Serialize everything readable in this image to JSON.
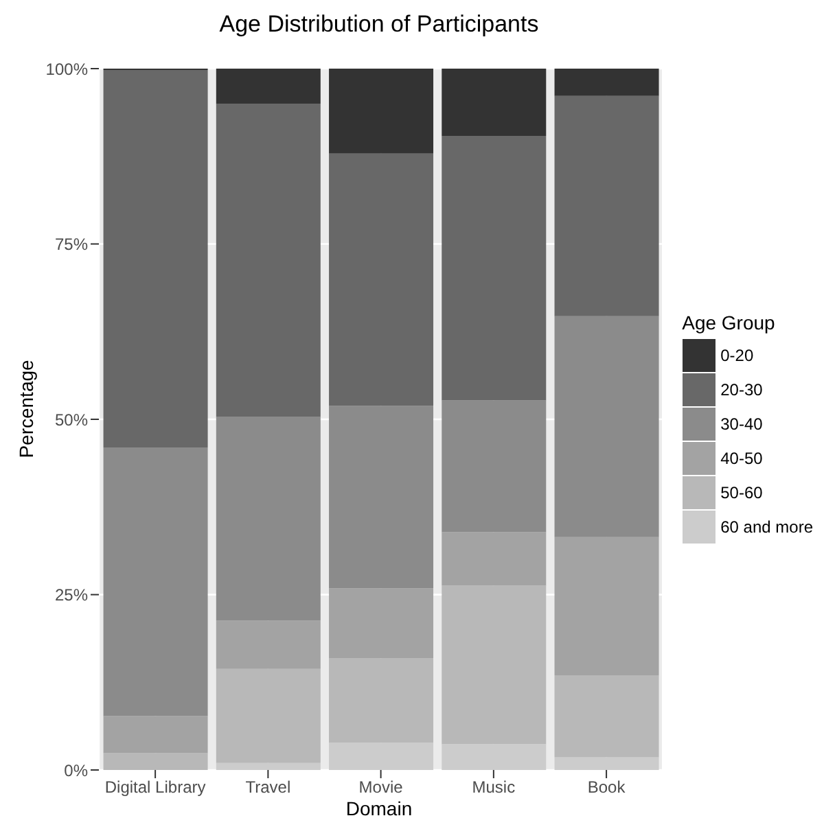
{
  "chart_data": {
    "type": "bar",
    "title": "Age Distribution of Participants",
    "xlabel": "Domain",
    "ylabel": "Percentage",
    "legend_title": "Age Group",
    "categories": [
      "Digital Library",
      "Travel",
      "Movie",
      "Music",
      "Book"
    ],
    "stacked": true,
    "series": [
      {
        "name": "60 and more",
        "color": "#cccccc",
        "values": [
          0,
          1.0,
          3.9,
          3.7,
          1.8
        ]
      },
      {
        "name": "50-60",
        "color": "#b8b8b8",
        "values": [
          2.4,
          13.4,
          12.0,
          22.6,
          11.7
        ]
      },
      {
        "name": "40-50",
        "color": "#a3a3a3",
        "values": [
          5.3,
          6.9,
          10.0,
          7.6,
          19.7
        ]
      },
      {
        "name": "30-40",
        "color": "#8b8b8b",
        "values": [
          38.3,
          29.1,
          26.0,
          18.8,
          31.5
        ]
      },
      {
        "name": "20-30",
        "color": "#686868",
        "values": [
          53.8,
          44.6,
          36.0,
          37.7,
          31.4
        ]
      },
      {
        "name": "0-20",
        "color": "#333333",
        "values": [
          0.2,
          5.0,
          12.1,
          9.6,
          3.9
        ]
      }
    ],
    "ylim": [
      0,
      100
    ],
    "yticks": [
      {
        "value": 0,
        "label": "0%"
      },
      {
        "value": 25,
        "label": "25%"
      },
      {
        "value": 50,
        "label": "50%"
      },
      {
        "value": 75,
        "label": "75%"
      },
      {
        "value": 100,
        "label": "100%"
      }
    ],
    "grid": true,
    "legend": "right"
  }
}
